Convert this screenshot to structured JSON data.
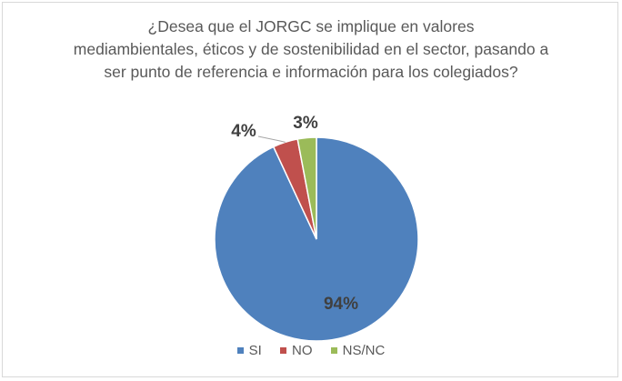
{
  "chart_data": {
    "type": "pie",
    "title_lines": [
      "¿Desea que el JORGC se implique  en valores",
      "mediambientales,  éticos y de sostenibilidad  en el sector, pasando a",
      "ser punto de referencia e información para los colegiados?"
    ],
    "categories": [
      "SI",
      "NO",
      "NS/NC"
    ],
    "values": [
      94,
      4,
      3
    ],
    "data_labels": [
      "94%",
      "4%",
      "3%"
    ],
    "colors": [
      "#4f81bd",
      "#c0504d",
      "#9bbb59"
    ],
    "legend_placement": "bottom"
  }
}
